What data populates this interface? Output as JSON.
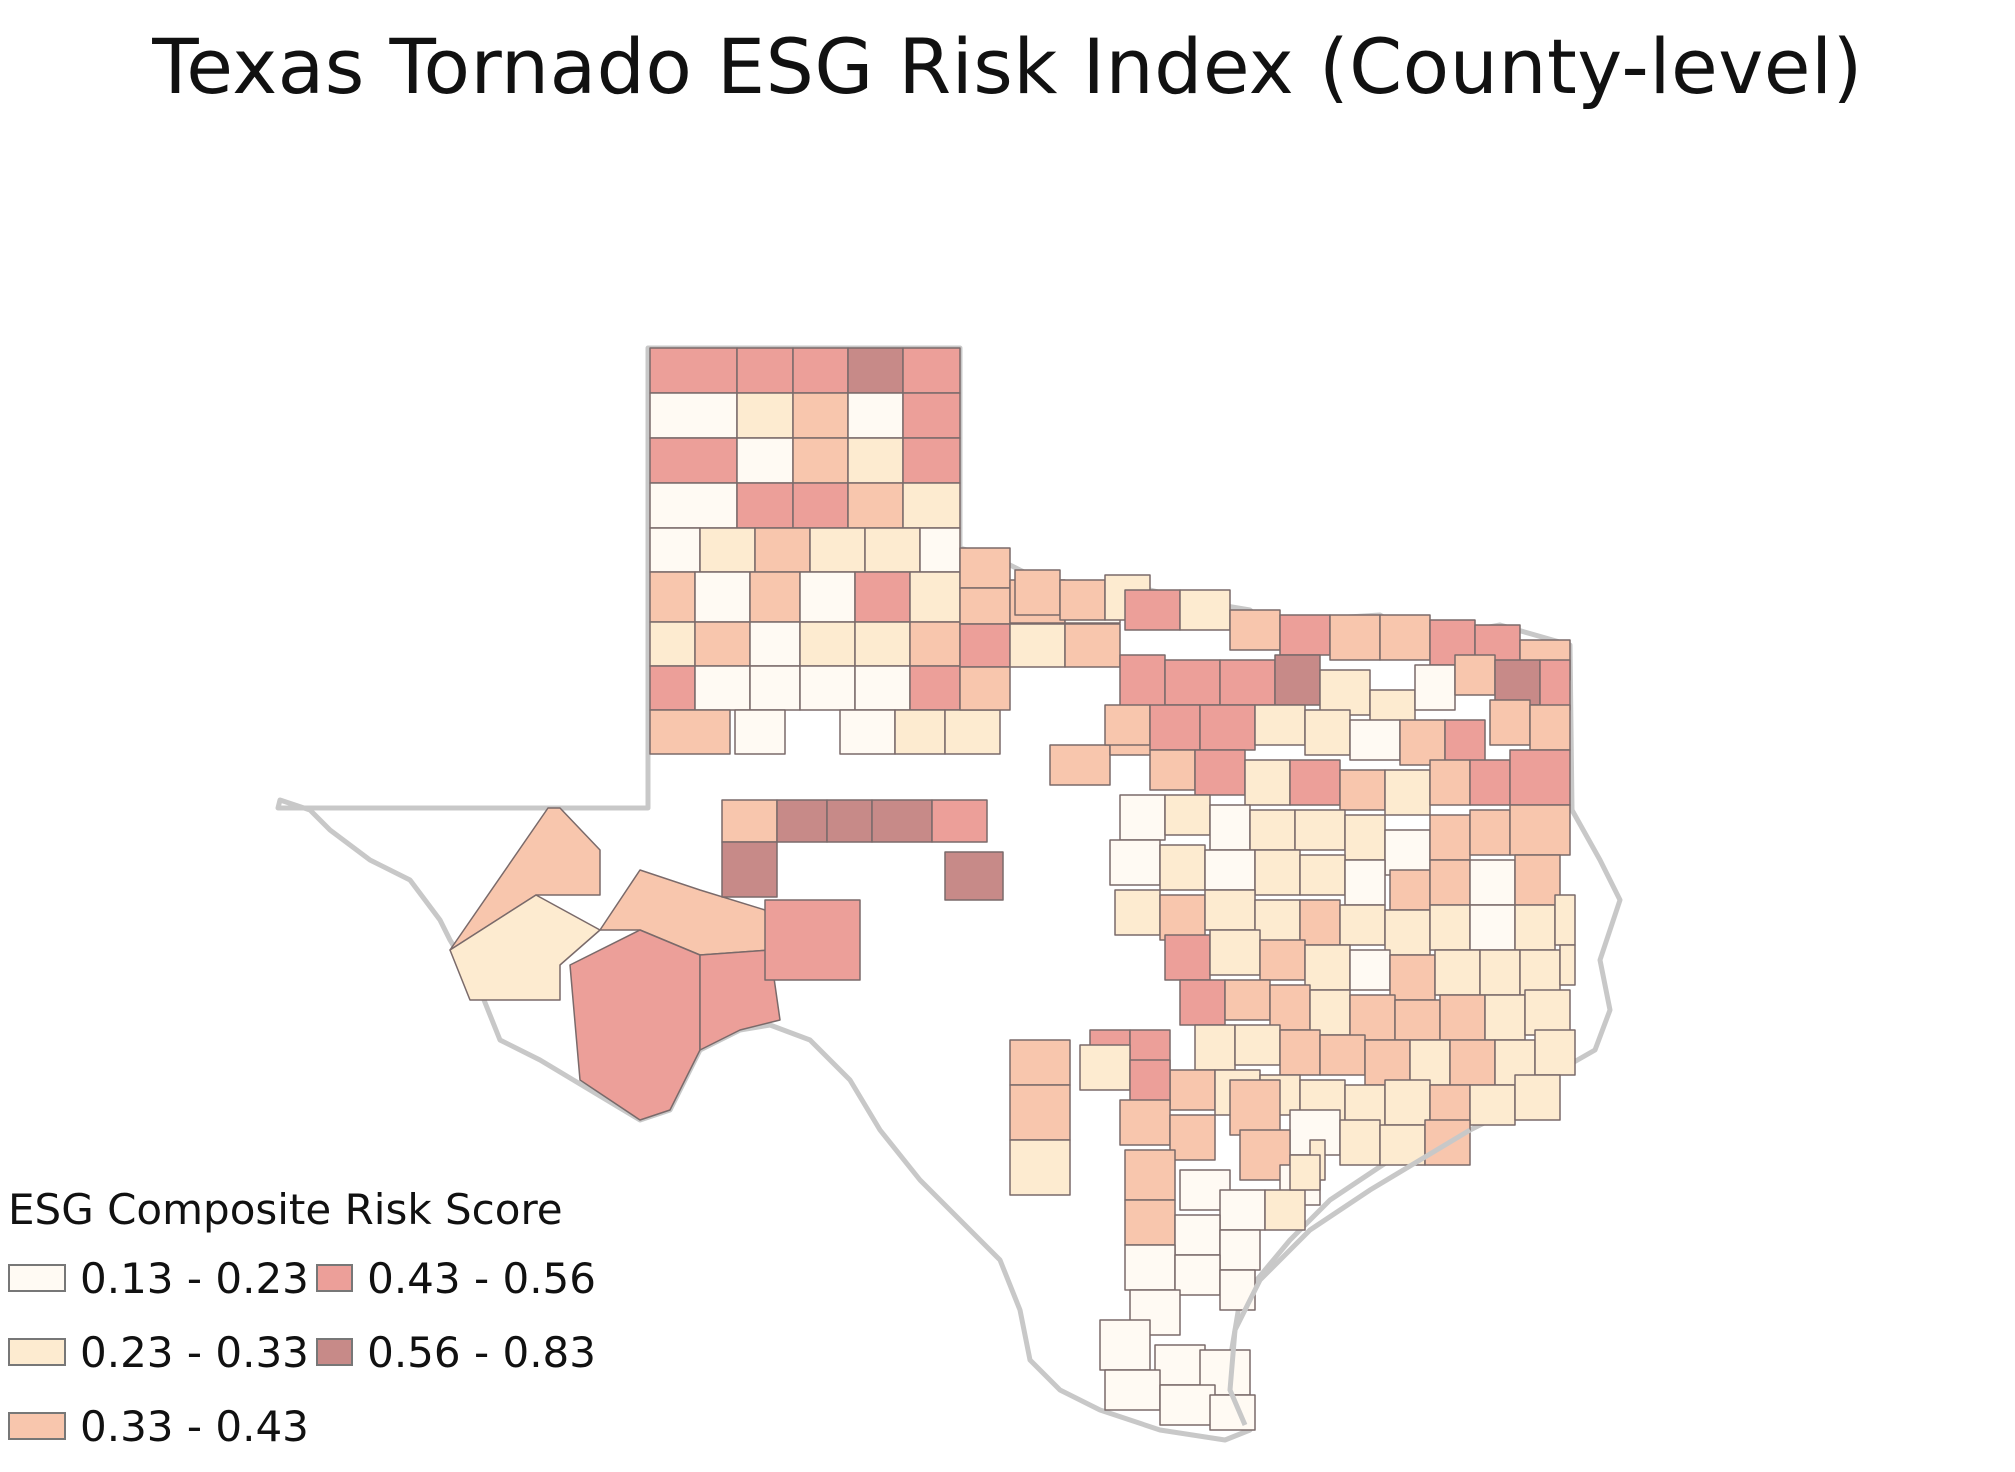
{
  "title": "Texas Tornado ESG Risk Index (County-level)",
  "legend": {
    "title": "ESG Composite Risk Score",
    "classes": [
      {
        "label": "0.13 - 0.23",
        "color": "#fffaf3"
      },
      {
        "label": "0.43 - 0.56",
        "color": "#ec9f99"
      },
      {
        "label": "0.23 - 0.33",
        "color": "#fdebd0"
      },
      {
        "label": "0.56 - 0.83",
        "color": "#c78a88"
      },
      {
        "label": "0.33 - 0.43",
        "color": "#f8c6ad"
      }
    ]
  },
  "colors": {
    "state_outline": "#c8c8c8",
    "county_border": "#7a6a6a",
    "background": "#ffffff"
  }
}
